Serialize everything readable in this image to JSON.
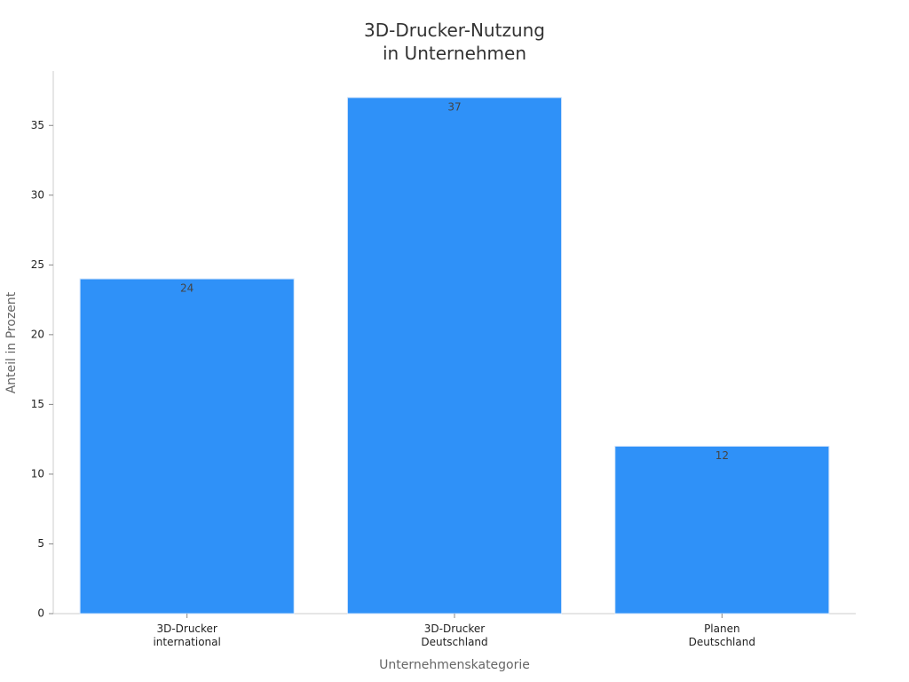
{
  "chart_data": {
    "type": "bar",
    "title": "3D-Drucker-Nutzung\nin Unternehmen",
    "x_label": "Unternehmenskategorie",
    "y_label": "Anteil in Prozent",
    "categories": [
      "3D-Drucker\ninternational",
      "3D-Drucker\nDeutschland",
      "Planen\nDeutschland"
    ],
    "values": [
      24,
      37,
      12
    ],
    "color": "#2f91f8",
    "ylim": [
      0,
      38.9
    ],
    "yticks": [
      0,
      5,
      10,
      15,
      20,
      25,
      30,
      35
    ],
    "grid": false
  }
}
